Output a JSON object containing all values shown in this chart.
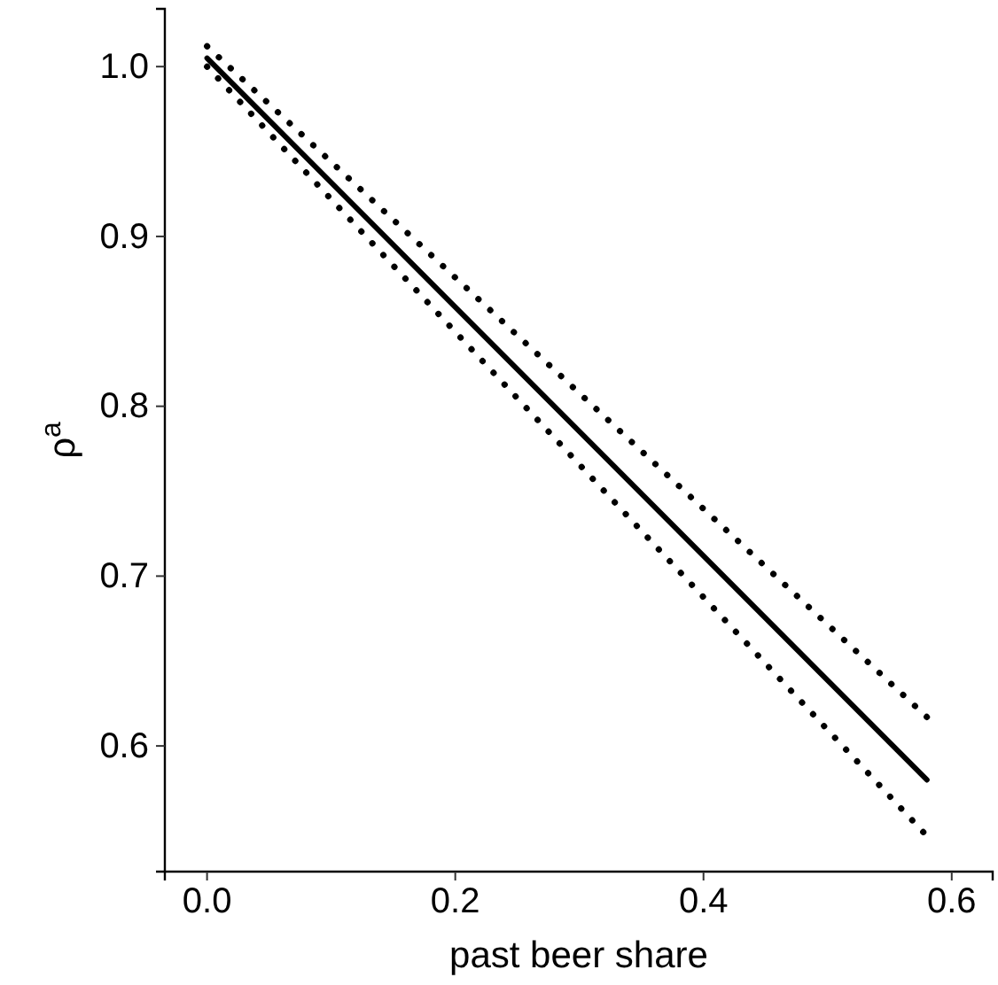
{
  "chart_data": {
    "type": "line",
    "xlabel": "past beer share",
    "ylabel": "ρ$^{a}$",
    "xlim": [
      -0.034,
      0.633
    ],
    "ylim": [
      0.526,
      1.034
    ],
    "xticks": [
      {
        "value": 0,
        "label": "0.0"
      },
      0.2,
      0.4,
      0.6
    ],
    "yticks": [
      0.6,
      0.7,
      0.8,
      0.9,
      {
        "value": 1,
        "label": "1.0"
      }
    ],
    "grid": false,
    "marker": "none",
    "x": [
      0,
      0.58
    ],
    "series": [
      {
        "color": "#000000",
        "line_style": "solid",
        "values": [
          1.005,
          0.58
        ]
      },
      {
        "color": "#000000",
        "line_style": "dotted",
        "values": [
          1.012,
          0.617
        ]
      },
      {
        "color": "#000000",
        "line_style": "dotted",
        "values": [
          1.0,
          0.547
        ]
      }
    ]
  }
}
